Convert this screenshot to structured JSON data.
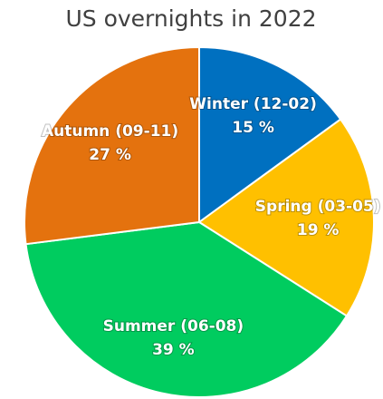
{
  "chart_data": {
    "type": "pie",
    "title": "US overnights in 2022",
    "categories": [
      "Winter (12-02)",
      "Spring (03-05)",
      "Summer (06-08)",
      "Autumn (09-11)"
    ],
    "values": [
      15,
      19,
      39,
      27
    ],
    "value_labels": [
      "15 %",
      "19 %",
      "39 %",
      "27 %"
    ],
    "colors": [
      "#0070c0",
      "#ffc000",
      "#00cc5f",
      "#e4720e"
    ]
  }
}
